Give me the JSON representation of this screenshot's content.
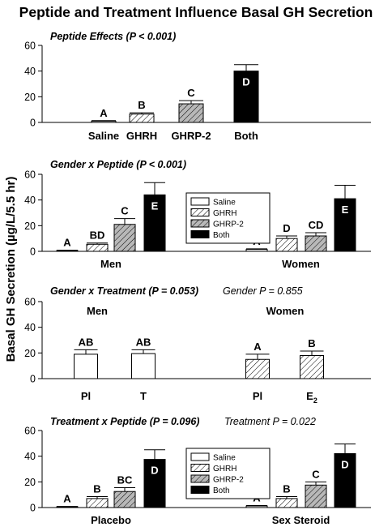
{
  "figure_title": "Peptide and Treatment Influence Basal GH Secretion",
  "shared_ylabel": "Basal GH Secretion (µg/L/5.5 hr)",
  "legend_entries": [
    {
      "name": "Saline",
      "fill": "white"
    },
    {
      "name": "GHRH",
      "fill": "hatch"
    },
    {
      "name": "GHRP-2",
      "fill": "gray-hatch"
    },
    {
      "name": "Both",
      "fill": "black"
    }
  ],
  "chart_data": [
    {
      "type": "bar",
      "title": "Peptide Effects (P < 0.001)",
      "subtitle": "",
      "ylim": [
        0,
        60
      ],
      "yticks": [
        0,
        20,
        40,
        60
      ],
      "groups": [
        {
          "label": "",
          "bars": [
            {
              "series": "Saline",
              "fill": "white",
              "value": 1,
              "error": 0.4,
              "letter": "A"
            },
            {
              "series": "GHRH",
              "fill": "hatch",
              "value": 6.5,
              "error": 1,
              "letter": "B"
            },
            {
              "series": "GHRP-2",
              "fill": "gray-hatch",
              "value": 14.5,
              "error": 2.5,
              "letter": "C"
            },
            {
              "series": "Both",
              "fill": "black",
              "value": 40,
              "error": 5,
              "letter": "D"
            }
          ]
        }
      ],
      "category_labels": [
        "Saline",
        "GHRH",
        "GHRP-2",
        "Both"
      ],
      "header_labels": [],
      "legend": false
    },
    {
      "type": "bar",
      "title": "Gender x Peptide (P < 0.001)",
      "subtitle": "",
      "ylim": [
        0,
        60
      ],
      "yticks": [
        0,
        20,
        40,
        60
      ],
      "groups": [
        {
          "label": "Men",
          "bars": [
            {
              "series": "Saline",
              "fill": "white",
              "value": 0.6,
              "error": 0.3,
              "letter": "A"
            },
            {
              "series": "GHRH",
              "fill": "hatch",
              "value": 5.5,
              "error": 1,
              "letter": "BD"
            },
            {
              "series": "GHRP-2",
              "fill": "gray-hatch",
              "value": 21,
              "error": 4.5,
              "letter": "C"
            },
            {
              "series": "Both",
              "fill": "black",
              "value": 44,
              "error": 9.5,
              "letter": "E"
            }
          ]
        },
        {
          "label": "Women",
          "bars": [
            {
              "series": "Saline",
              "fill": "white",
              "value": 1.5,
              "error": 0.5,
              "letter": "A"
            },
            {
              "series": "GHRH",
              "fill": "hatch",
              "value": 10,
              "error": 2,
              "letter": "D"
            },
            {
              "series": "GHRP-2",
              "fill": "gray-hatch",
              "value": 12,
              "error": 2.5,
              "letter": "CD"
            },
            {
              "series": "Both",
              "fill": "black",
              "value": 41,
              "error": 10.5,
              "letter": "E"
            }
          ]
        }
      ],
      "category_labels": [],
      "header_labels": [],
      "legend": true
    },
    {
      "type": "bar",
      "title": "Gender x Treatment (P = 0.053)",
      "subtitle": "Gender P = 0.855",
      "ylim": [
        0,
        60
      ],
      "yticks": [
        0,
        20,
        40,
        60
      ],
      "groups": [
        {
          "label": "",
          "bars": [
            {
              "series": "Pl",
              "fill": "white",
              "value": 19,
              "error": 3.5,
              "letter": "AB"
            },
            {
              "series": "T",
              "fill": "white",
              "value": 19.5,
              "error": 3,
              "letter": "AB"
            }
          ]
        },
        {
          "label": "",
          "bars": [
            {
              "series": "Pl",
              "fill": "hatch",
              "value": 15,
              "error": 4,
              "letter": "A"
            },
            {
              "series": "E2",
              "fill": "hatch",
              "value": 18,
              "error": 3.5,
              "letter": "B"
            }
          ]
        }
      ],
      "category_labels": [
        "Pl",
        "T",
        "Pl",
        "E2"
      ],
      "header_labels": [
        "Men",
        "Women"
      ],
      "legend": false
    },
    {
      "type": "bar",
      "title": "Treatment x Peptide (P = 0.096)",
      "subtitle": "Treatment P = 0.022",
      "ylim": [
        0,
        60
      ],
      "yticks": [
        0,
        20,
        40,
        60
      ],
      "groups": [
        {
          "label": "Placebo",
          "bars": [
            {
              "series": "Saline",
              "fill": "white",
              "value": 0.6,
              "error": 0.3,
              "letter": "A"
            },
            {
              "series": "GHRH",
              "fill": "hatch",
              "value": 7,
              "error": 1.5,
              "letter": "B"
            },
            {
              "series": "GHRP-2",
              "fill": "gray-hatch",
              "value": 12.5,
              "error": 3,
              "letter": "BC"
            },
            {
              "series": "Both",
              "fill": "black",
              "value": 37.5,
              "error": 7.5,
              "letter": "D"
            }
          ]
        },
        {
          "label": "Sex Steroid",
          "bars": [
            {
              "series": "Saline",
              "fill": "white",
              "value": 1.2,
              "error": 0.4,
              "letter": "A"
            },
            {
              "series": "GHRH",
              "fill": "hatch",
              "value": 7,
              "error": 1.5,
              "letter": "B"
            },
            {
              "series": "GHRP-2",
              "fill": "gray-hatch",
              "value": 17.5,
              "error": 2.5,
              "letter": "C"
            },
            {
              "series": "Both",
              "fill": "black",
              "value": 42,
              "error": 7.5,
              "letter": "D"
            }
          ]
        }
      ],
      "category_labels": [],
      "header_labels": [],
      "legend": true
    }
  ]
}
